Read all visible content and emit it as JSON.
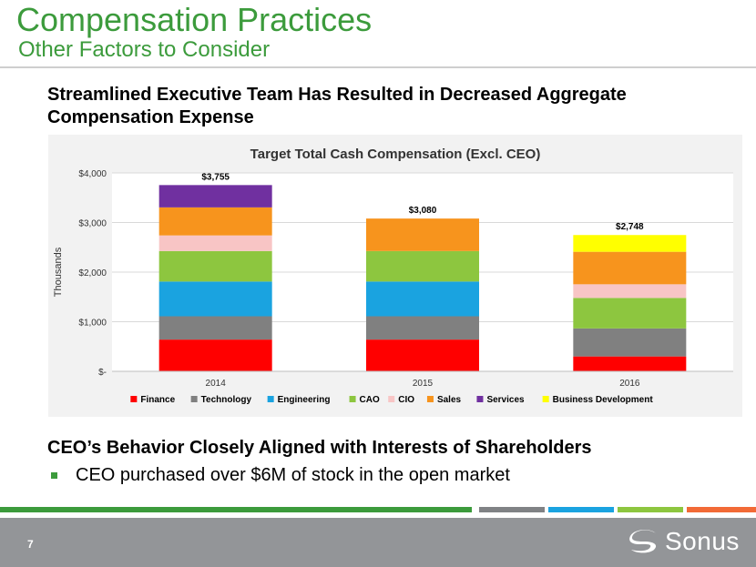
{
  "slide": {
    "title": "Compensation Practices",
    "subtitle": "Other Factors to Consider",
    "heading1": "Streamlined Executive Team Has Resulted in Decreased Aggregate Compensation Expense",
    "heading2": "CEO’s Behavior Closely Aligned with Interests of Shareholders",
    "bullets": [
      "CEO purchased over $6M of stock in the open market"
    ],
    "page_number": "7",
    "logo_text": "Sonus"
  },
  "colors": {
    "accent": "#3c9b3c",
    "footer": "#939598",
    "footer_bars": [
      "#3c9b3c",
      "#808285",
      "#1aa3e0",
      "#8dc63f",
      "#f26a36"
    ]
  },
  "chart_data": {
    "type": "bar",
    "stacked": true,
    "title": "Target Total Cash Compensation (Excl. CEO)",
    "xlabel": "",
    "ylabel": "Thousands",
    "ylim": [
      0,
      4000
    ],
    "yticks": [
      0,
      1000,
      2000,
      3000,
      4000
    ],
    "ytick_labels": [
      "$-",
      "$1,000",
      "$2,000",
      "$3,000",
      "$4,000"
    ],
    "categories": [
      "2014",
      "2015",
      "2016"
    ],
    "totals": [
      3755,
      3080,
      2748
    ],
    "total_labels": [
      "$3,755",
      "$3,080",
      "$2,748"
    ],
    "legend_position": "bottom",
    "series": [
      {
        "name": "Finance",
        "color": "#ff0000",
        "values": [
          640,
          640,
          300
        ]
      },
      {
        "name": "Technology",
        "color": "#808080",
        "values": [
          470,
          470,
          565
        ]
      },
      {
        "name": "Engineering",
        "color": "#1aa3e0",
        "values": [
          700,
          700,
          0
        ]
      },
      {
        "name": "CAO",
        "color": "#8dc63f",
        "values": [
          615,
          615,
          615
        ]
      },
      {
        "name": "CIO",
        "color": "#f8c5c5",
        "values": [
          315,
          0,
          275
        ]
      },
      {
        "name": "Sales",
        "color": "#f7941d",
        "values": [
          565,
          655,
          655
        ]
      },
      {
        "name": "Services",
        "color": "#7030a0",
        "values": [
          450,
          0,
          0
        ]
      },
      {
        "name": "Business Development",
        "color": "#ffff00",
        "values": [
          0,
          0,
          338
        ]
      }
    ]
  }
}
